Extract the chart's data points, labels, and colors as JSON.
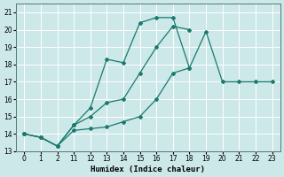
{
  "xlabel": "Humidex (Indice chaleur)",
  "bg_color": "#cce8e8",
  "grid_color": "#ffffff",
  "line_color": "#1a7a6e",
  "categories": [
    0,
    1,
    2,
    11,
    12,
    13,
    14,
    15,
    16,
    17,
    18,
    19,
    20,
    21,
    22,
    23
  ],
  "ylim": [
    13.0,
    21.5
  ],
  "yticks": [
    13,
    14,
    15,
    16,
    17,
    18,
    19,
    20,
    21
  ],
  "line1_y": [
    14.0,
    13.8,
    13.3,
    14.5,
    15.5,
    18.3,
    18.1,
    20.4,
    20.7,
    20.7,
    17.8,
    19.9,
    17.0,
    17.0,
    17.0,
    17.0
  ],
  "line2_y": [
    14.0,
    13.8,
    13.3,
    14.2,
    14.3,
    14.4,
    14.7,
    15.0,
    16.0,
    17.5,
    17.8,
    null,
    null,
    null,
    null,
    null
  ],
  "line3_y": [
    14.0,
    13.8,
    13.3,
    14.5,
    15.0,
    15.8,
    16.0,
    17.5,
    19.0,
    20.2,
    20.0,
    null,
    null,
    null,
    null,
    null
  ]
}
